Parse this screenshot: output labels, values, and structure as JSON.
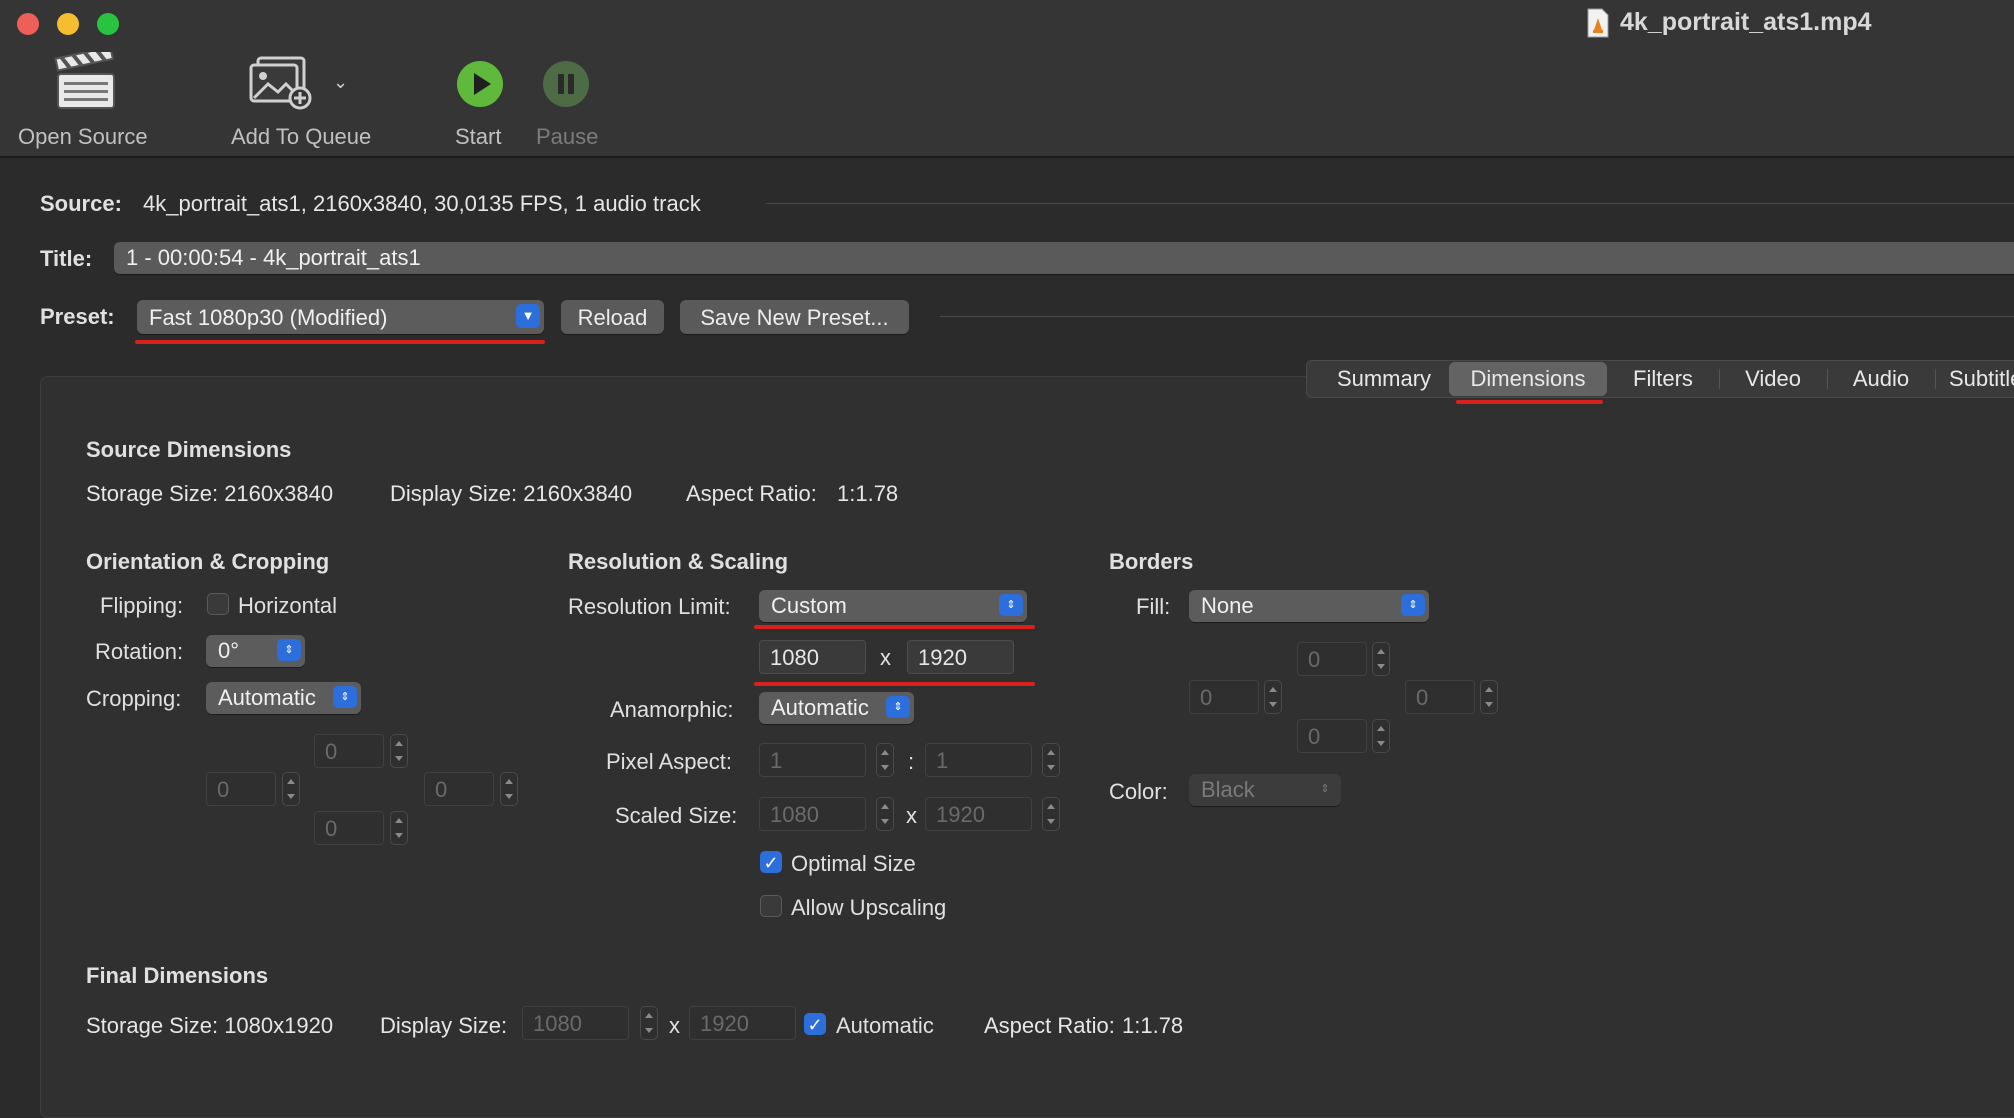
{
  "window": {
    "title": "4k_portrait_ats1.mp4"
  },
  "toolbar": {
    "open_source": "Open Source",
    "add_to_queue": "Add To Queue",
    "start": "Start",
    "pause": "Pause"
  },
  "source": {
    "label": "Source:",
    "value": "4k_portrait_ats1, 2160x3840, 30,0135 FPS, 1 audio track"
  },
  "title_row": {
    "label": "Title:",
    "value": "1 - 00:00:54 - 4k_portrait_ats1"
  },
  "preset": {
    "label": "Preset:",
    "value": "Fast 1080p30 (Modified)",
    "reload": "Reload",
    "save_new": "Save New Preset..."
  },
  "tabs": [
    "Summary",
    "Dimensions",
    "Filters",
    "Video",
    "Audio",
    "Subtitle"
  ],
  "source_dimensions": {
    "heading": "Source Dimensions",
    "storage": "Storage Size: 2160x3840",
    "display": "Display Size: 2160x3840",
    "aspect_label": "Aspect Ratio:",
    "aspect_value": "1:1.78"
  },
  "orientation": {
    "heading": "Orientation & Cropping",
    "flipping_label": "Flipping:",
    "horizontal": "Horizontal",
    "rotation_label": "Rotation:",
    "rotation_value": "0°",
    "cropping_label": "Cropping:",
    "cropping_value": "Automatic",
    "crop_top": "0",
    "crop_left": "0",
    "crop_right": "0",
    "crop_bottom": "0"
  },
  "resolution": {
    "heading": "Resolution & Scaling",
    "limit_label": "Resolution Limit:",
    "limit_value": "Custom",
    "width": "1080",
    "x": "x",
    "height": "1920",
    "anamorphic_label": "Anamorphic:",
    "anamorphic_value": "Automatic",
    "pixel_aspect_label": "Pixel Aspect:",
    "pixel_aspect_w": "1",
    "colon": ":",
    "pixel_aspect_h": "1",
    "scaled_label": "Scaled Size:",
    "scaled_w": "1080",
    "scaled_h": "1920",
    "optimal": "Optimal Size",
    "upscaling": "Allow Upscaling"
  },
  "borders": {
    "heading": "Borders",
    "fill_label": "Fill:",
    "fill_value": "None",
    "top": "0",
    "left": "0",
    "right": "0",
    "bottom": "0",
    "color_label": "Color:",
    "color_value": "Black"
  },
  "final_dimensions": {
    "heading": "Final Dimensions",
    "storage": "Storage Size: 1080x1920",
    "display_label": "Display Size:",
    "display_w": "1080",
    "x": "x",
    "display_h": "1920",
    "automatic": "Automatic",
    "aspect_label": "Aspect Ratio:",
    "aspect_value": "1:1.78"
  },
  "colors": {
    "accent": "#2c6fdc",
    "highlight": "#d9201a"
  }
}
